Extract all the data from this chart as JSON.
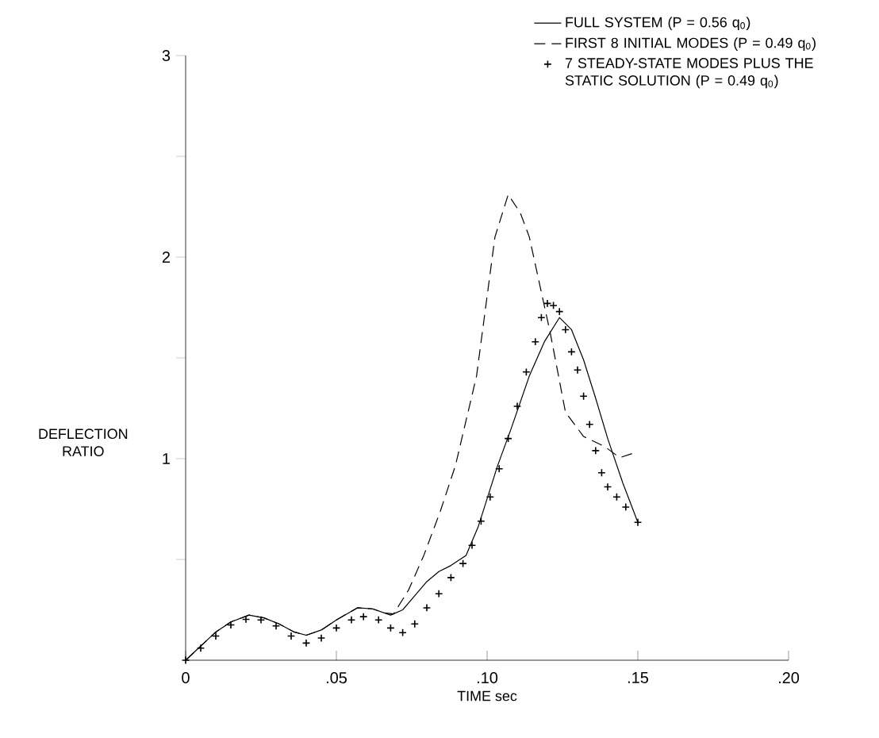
{
  "chart_data": {
    "type": "line",
    "xlabel": "TIME  sec",
    "ylabel": "DEFLECTION RATIO",
    "xlim": [
      0,
      0.2
    ],
    "ylim": [
      0,
      3
    ],
    "xticks": [
      {
        "value": 0,
        "label": "0"
      },
      {
        "value": 0.05,
        "label": ".05"
      },
      {
        "value": 0.1,
        "label": ".10"
      },
      {
        "value": 0.15,
        "label": ".15"
      },
      {
        "value": 0.2,
        "label": ".20"
      }
    ],
    "yticks": [
      {
        "value": 0.5,
        "label": null
      },
      1,
      {
        "value": 1.5,
        "label": null
      },
      2,
      {
        "value": 2.5,
        "label": null
      },
      3
    ],
    "legend": "top right",
    "grid": false,
    "series": [
      {
        "name": "FULL SYSTEM (P = 0.56 q$_{0}$)",
        "color": "#000000",
        "line_style": "solid",
        "marker": "none",
        "x": [
          0,
          0.005,
          0.01,
          0.015,
          0.021,
          0.026,
          0.031,
          0.036,
          0.04,
          0.045,
          0.05,
          0.057,
          0.062,
          0.068,
          0.072,
          0.076,
          0.08,
          0.084,
          0.088,
          0.093,
          0.097,
          0.1035,
          0.108,
          0.114,
          0.119,
          0.124,
          0.128,
          0.132,
          0.136,
          0.14,
          0.145,
          0.15
        ],
        "values": [
          0,
          0.07,
          0.14,
          0.19,
          0.224,
          0.21,
          0.18,
          0.14,
          0.124,
          0.15,
          0.2,
          0.26,
          0.255,
          0.224,
          0.25,
          0.32,
          0.39,
          0.44,
          0.47,
          0.52,
          0.66,
          0.966,
          1.15,
          1.41,
          1.58,
          1.7,
          1.64,
          1.49,
          1.3,
          1.1,
          0.88,
          0.684
        ]
      },
      {
        "name": "FIRST 8 INITIAL MODES (P = 0.49 q$_{0}$)",
        "color": "#000000",
        "line_style": "dashed",
        "marker": "none",
        "x": [
          0,
          0.005,
          0.01,
          0.015,
          0.021,
          0.026,
          0.031,
          0.036,
          0.04,
          0.045,
          0.05,
          0.057,
          0.062,
          0.066,
          0.069,
          0.074,
          0.079,
          0.0845,
          0.0895,
          0.0965,
          0.1026,
          0.107,
          0.111,
          0.114,
          0.121,
          0.126,
          0.132,
          0.139,
          0.144,
          0.149
        ],
        "values": [
          0,
          0.07,
          0.14,
          0.19,
          0.224,
          0.21,
          0.18,
          0.14,
          0.124,
          0.15,
          0.2,
          0.26,
          0.255,
          0.235,
          0.23,
          0.35,
          0.52,
          0.74,
          0.966,
          1.41,
          2.1,
          2.31,
          2.22,
          2.1,
          1.62,
          1.23,
          1.11,
          1.06,
          1.005,
          1.03
        ]
      },
      {
        "name": "7 STEADY-STATE MODES PLUS THE STATIC SOLUTION (P = 0.49 q$_{0}$)",
        "type": "scatter",
        "color": "#000000",
        "marker": "cross",
        "x": [
          0,
          0.005,
          0.01,
          0.015,
          0.02,
          0.025,
          0.03,
          0.035,
          0.04,
          0.045,
          0.05,
          0.055,
          0.059,
          0.064,
          0.068,
          0.072,
          0.076,
          0.08,
          0.084,
          0.088,
          0.092,
          0.095,
          0.098,
          0.101,
          0.104,
          0.107,
          0.11,
          0.113,
          0.116,
          0.118,
          0.12,
          0.122,
          0.124,
          0.126,
          0.128,
          0.13,
          0.132,
          0.134,
          0.136,
          0.138,
          0.14,
          0.143,
          0.146,
          0.15
        ],
        "values": [
          0,
          0.06,
          0.12,
          0.175,
          0.203,
          0.2,
          0.17,
          0.12,
          0.085,
          0.11,
          0.16,
          0.2,
          0.216,
          0.2,
          0.16,
          0.137,
          0.18,
          0.26,
          0.33,
          0.41,
          0.48,
          0.57,
          0.69,
          0.81,
          0.95,
          1.1,
          1.26,
          1.43,
          1.58,
          1.7,
          1.77,
          1.76,
          1.73,
          1.64,
          1.53,
          1.44,
          1.31,
          1.17,
          1.04,
          0.93,
          0.86,
          0.81,
          0.76,
          0.684
        ]
      }
    ]
  }
}
